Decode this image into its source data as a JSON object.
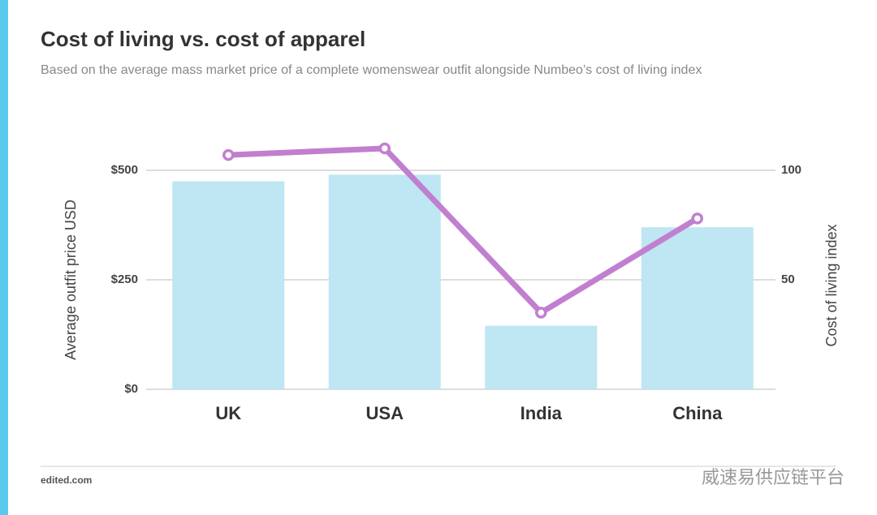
{
  "chart_data": {
    "type": "combo",
    "title": "Cost of living vs. cost of apparel",
    "subtitle": "Based on the average mass market price of a complete womenswear outfit alongside Numbeo’s cost of living index",
    "categories": [
      "UK",
      "USA",
      "India",
      "China"
    ],
    "series": [
      {
        "type": "bar",
        "color": "#bee6f3",
        "values": [
          475,
          490,
          145,
          370
        ]
      },
      {
        "type": "line",
        "color": "#c17fd0",
        "axis": "y2",
        "values": [
          107,
          110,
          35,
          78
        ]
      }
    ],
    "y_label": "Average outfit price USD",
    "y2_label": "Cost of living index",
    "ylim": [
      0,
      600
    ],
    "yticks": [
      {
        "value": 0,
        "label": "$0"
      },
      {
        "value": 250,
        "label": "$250"
      },
      {
        "value": 500,
        "label": "$500"
      }
    ],
    "y2lim": [
      0,
      120
    ],
    "y2ticks": [
      50,
      100
    ],
    "grid": true,
    "source": "edited.com",
    "watermark": "威速易供应链平台"
  }
}
